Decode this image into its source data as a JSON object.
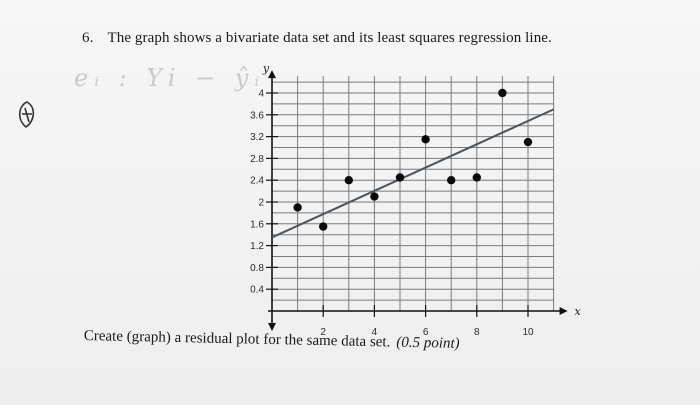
{
  "question": {
    "number": "6.",
    "text": "The graph shows a bivariate data set and its least squares regression line."
  },
  "instruction": {
    "text": "Create (graph) a residual plot for the same data set.",
    "points": "(0.5 point)"
  },
  "margin_note": "eᵢ : Yi − ŷᵢ",
  "colors": {
    "grid": "#7a7a7a",
    "points": "#0a0a0a",
    "regression_line": "#4a5560"
  },
  "chart_data": {
    "type": "scatter",
    "xlabel": "x",
    "ylabel": "y",
    "xlim": [
      0,
      11
    ],
    "ylim": [
      0,
      4.2
    ],
    "x_ticks": [
      "2",
      "4",
      "6",
      "8",
      "10"
    ],
    "y_ticks": [
      "0.4",
      "0.8",
      "1.2",
      "1.6",
      "2",
      "2.4",
      "2.8",
      "3.2",
      "3.6",
      "4"
    ],
    "grid": true,
    "points": [
      {
        "x": 1,
        "y": 1.9
      },
      {
        "x": 2,
        "y": 1.55
      },
      {
        "x": 3,
        "y": 2.4
      },
      {
        "x": 4,
        "y": 2.1
      },
      {
        "x": 5,
        "y": 2.45
      },
      {
        "x": 6,
        "y": 3.15
      },
      {
        "x": 7,
        "y": 2.4
      },
      {
        "x": 8,
        "y": 2.45
      },
      {
        "x": 9,
        "y": 4.0
      },
      {
        "x": 10,
        "y": 3.1
      }
    ],
    "regression_line": {
      "x1": 0,
      "y1": 1.35,
      "x2": 11,
      "y2": 3.7
    }
  }
}
